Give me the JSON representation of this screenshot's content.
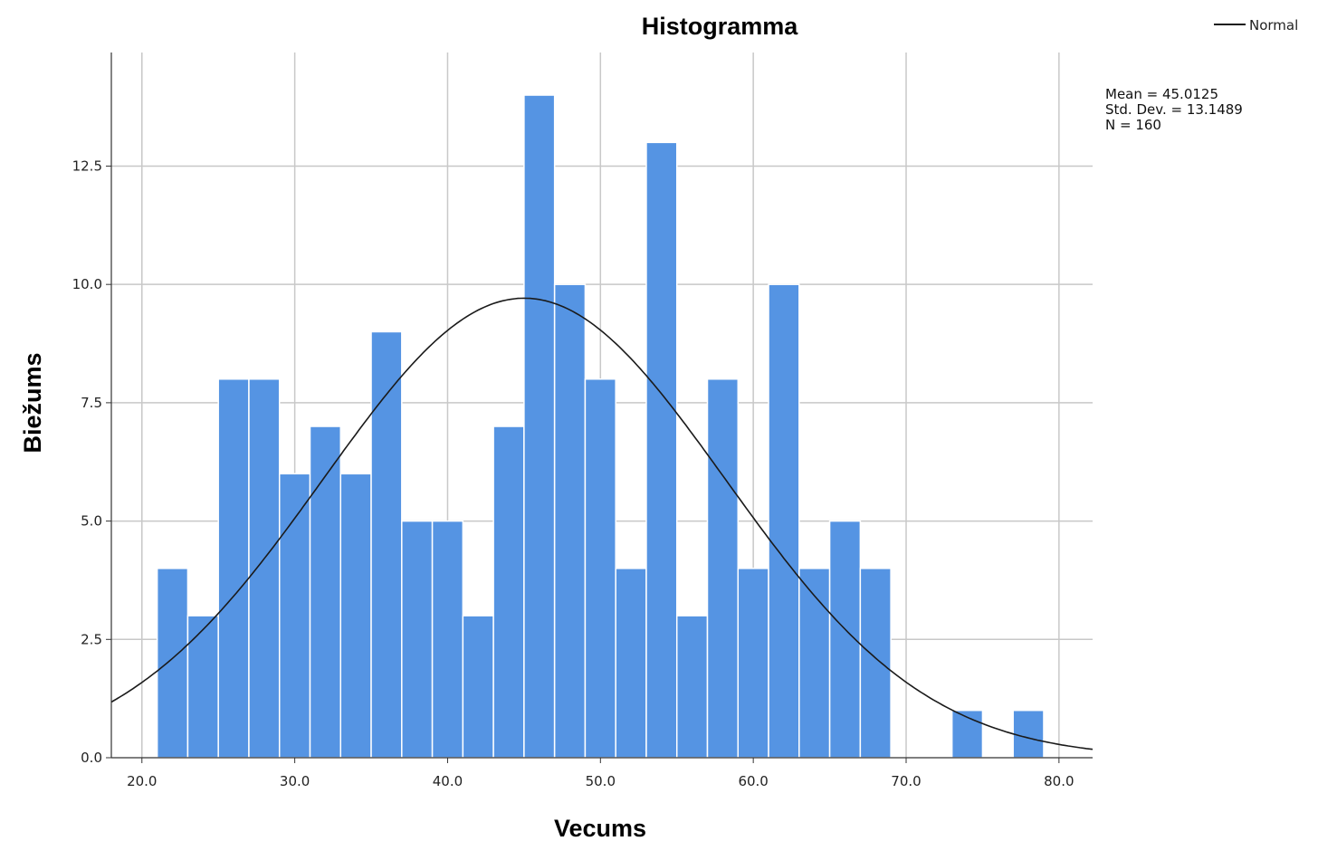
{
  "chart_data": {
    "type": "bar",
    "subtype": "histogram",
    "title": "Histogramma",
    "xlabel": "Vecums",
    "ylabel": "Biežums",
    "bin_width": 2.0,
    "bins": [
      {
        "start": 21.0,
        "end": 23.0,
        "count": 4
      },
      {
        "start": 23.0,
        "end": 25.0,
        "count": 3
      },
      {
        "start": 25.0,
        "end": 27.0,
        "count": 8
      },
      {
        "start": 27.0,
        "end": 29.0,
        "count": 8
      },
      {
        "start": 29.0,
        "end": 31.0,
        "count": 6
      },
      {
        "start": 31.0,
        "end": 33.0,
        "count": 7
      },
      {
        "start": 33.0,
        "end": 35.0,
        "count": 6
      },
      {
        "start": 35.0,
        "end": 37.0,
        "count": 9
      },
      {
        "start": 37.0,
        "end": 39.0,
        "count": 5
      },
      {
        "start": 39.0,
        "end": 41.0,
        "count": 5
      },
      {
        "start": 41.0,
        "end": 43.0,
        "count": 3
      },
      {
        "start": 43.0,
        "end": 45.0,
        "count": 7
      },
      {
        "start": 45.0,
        "end": 47.0,
        "count": 14
      },
      {
        "start": 47.0,
        "end": 49.0,
        "count": 10
      },
      {
        "start": 49.0,
        "end": 51.0,
        "count": 8
      },
      {
        "start": 51.0,
        "end": 53.0,
        "count": 4
      },
      {
        "start": 53.0,
        "end": 55.0,
        "count": 13
      },
      {
        "start": 55.0,
        "end": 57.0,
        "count": 3
      },
      {
        "start": 57.0,
        "end": 59.0,
        "count": 8
      },
      {
        "start": 59.0,
        "end": 61.0,
        "count": 4
      },
      {
        "start": 61.0,
        "end": 63.0,
        "count": 10
      },
      {
        "start": 63.0,
        "end": 65.0,
        "count": 4
      },
      {
        "start": 65.0,
        "end": 67.0,
        "count": 5
      },
      {
        "start": 67.0,
        "end": 69.0,
        "count": 4
      },
      {
        "start": 73.0,
        "end": 75.0,
        "count": 1
      },
      {
        "start": 77.0,
        "end": 79.0,
        "count": 1
      }
    ],
    "xlim": [
      18.0,
      82.2
    ],
    "ylim": [
      0,
      14.9
    ],
    "x_ticks": [
      20,
      30,
      40,
      50,
      60,
      70,
      80
    ],
    "x_tick_labels": [
      "20.0",
      "30.0",
      "40.0",
      "50.0",
      "60.0",
      "70.0",
      "80.0"
    ],
    "y_ticks": [
      0,
      2.5,
      5,
      7.5,
      10,
      12.5
    ],
    "y_tick_labels": [
      "0.0",
      "2.5",
      "5.0",
      "7.5",
      "10.0",
      "12.5"
    ],
    "grid": true,
    "bar_color": "#5594e3",
    "bar_edge_color": "#ffffff",
    "curve_color": "#1a1a1a",
    "normal_curve": {
      "mean": 45.0125,
      "std": 13.1489,
      "n": 160
    },
    "legend": {
      "entries": [
        "Normal"
      ],
      "placement": "top-right"
    },
    "stats": [
      "Mean = 45.0125",
      "Std. Dev. = 13.1489",
      "N = 160"
    ]
  }
}
